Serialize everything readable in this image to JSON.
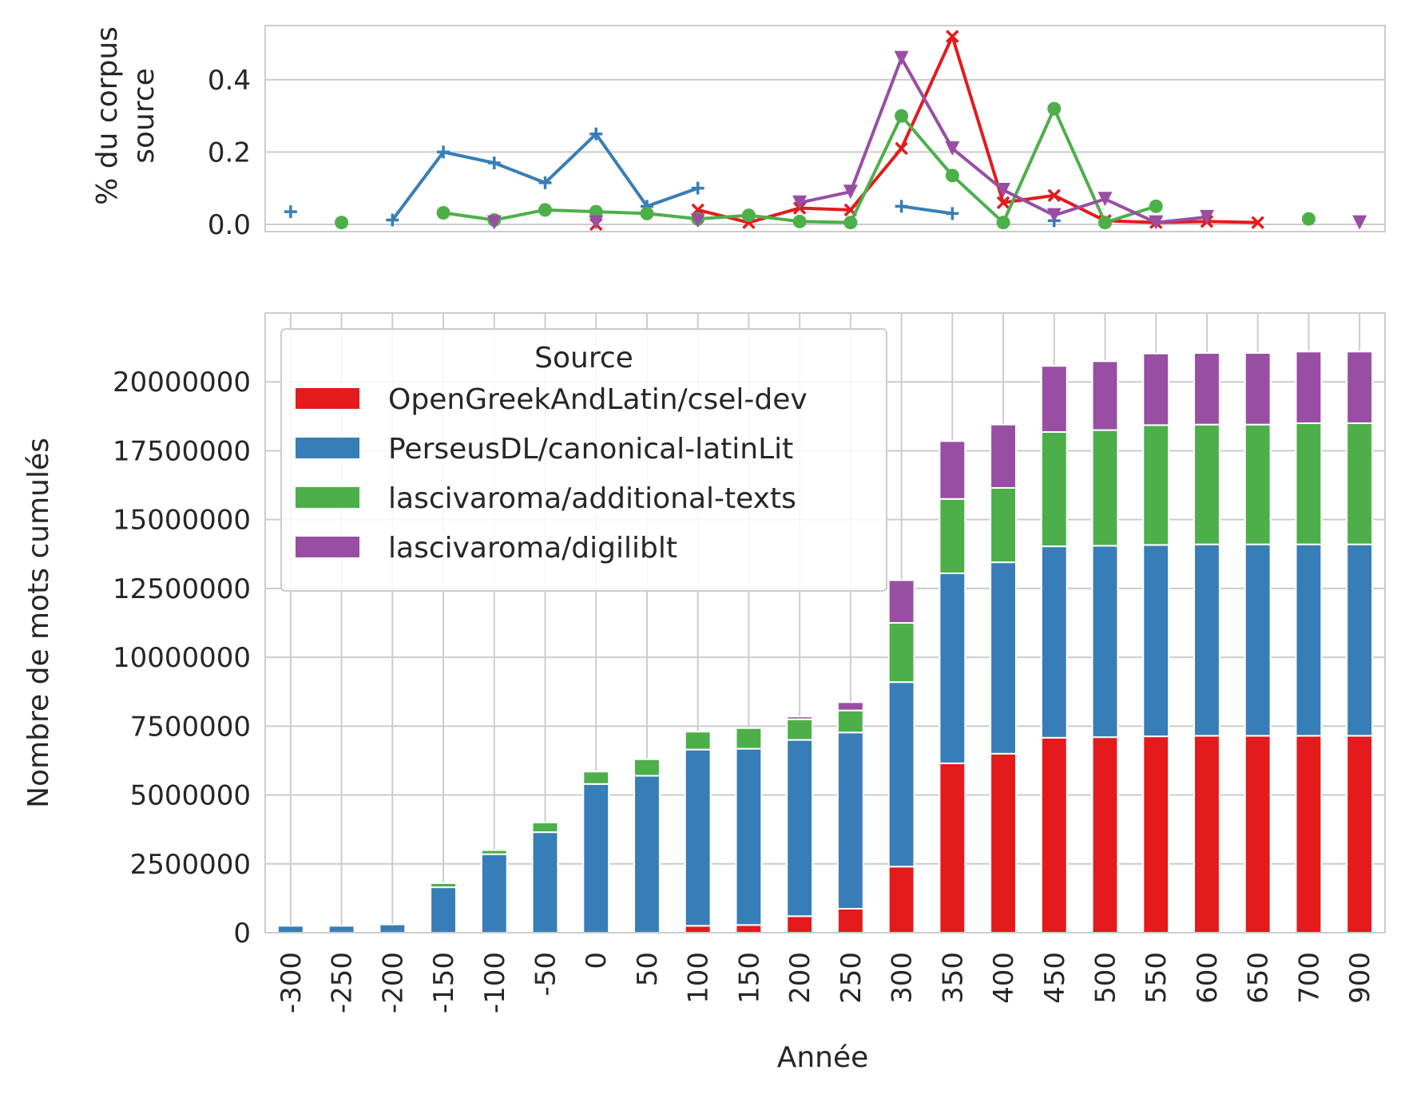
{
  "chart_data": [
    {
      "type": "line",
      "title": "",
      "xlabel": "",
      "ylabel": "% du corpus\nsource",
      "ylabel_lines": [
        "% du corpus",
        "source"
      ],
      "ylim": [
        -0.02,
        0.55
      ],
      "yticks": [
        0.0,
        0.2,
        0.4
      ],
      "ytick_labels": [
        "0.0",
        "0.2",
        "0.4"
      ],
      "grid": true,
      "x": [
        "-300",
        "-250",
        "-200",
        "-150",
        "-100",
        "-50",
        "0",
        "50",
        "100",
        "150",
        "200",
        "250",
        "300",
        "350",
        "400",
        "450",
        "500",
        "550",
        "600",
        "650",
        "700",
        "900"
      ],
      "series": [
        {
          "name": "OpenGreekAndLatin/csel-dev",
          "color": "#e41a1c",
          "marker": "x",
          "values": [
            null,
            null,
            null,
            null,
            null,
            null,
            0.0,
            null,
            0.04,
            0.005,
            0.045,
            0.04,
            0.21,
            0.52,
            0.06,
            0.08,
            0.01,
            0.005,
            0.008,
            0.005,
            null,
            null
          ]
        },
        {
          "name": "PerseusDL/canonical-latinLit",
          "color": "#377eb8",
          "marker": "+",
          "values": [
            0.035,
            null,
            0.012,
            0.2,
            0.17,
            0.115,
            0.25,
            0.05,
            0.1,
            null,
            null,
            null,
            0.05,
            0.03,
            null,
            0.01,
            null,
            null,
            null,
            null,
            null,
            null
          ]
        },
        {
          "name": "lascivaroma/additional-texts",
          "color": "#4daf4a",
          "marker": "o",
          "values": [
            null,
            0.005,
            null,
            0.032,
            0.012,
            0.04,
            0.035,
            0.03,
            0.015,
            0.025,
            0.008,
            0.005,
            0.3,
            0.135,
            0.005,
            0.32,
            0.005,
            0.05,
            null,
            null,
            0.015,
            null
          ]
        },
        {
          "name": "lascivaroma/digiliblt",
          "color": "#984ea3",
          "marker": "v",
          "values": [
            null,
            null,
            null,
            null,
            0.005,
            null,
            0.005,
            null,
            0.01,
            null,
            0.06,
            0.09,
            0.46,
            0.21,
            0.095,
            0.025,
            0.07,
            0.005,
            0.02,
            null,
            null,
            0.005
          ]
        }
      ]
    },
    {
      "type": "bar",
      "stacked": true,
      "title": "",
      "xlabel": "Année",
      "ylabel": "Nombre de mots cumulés",
      "ylim": [
        0,
        22500000
      ],
      "yticks": [
        0,
        2500000,
        5000000,
        7500000,
        10000000,
        12500000,
        15000000,
        17500000,
        20000000
      ],
      "ytick_labels": [
        "0",
        "2500000",
        "5000000",
        "7500000",
        "10000000",
        "12500000",
        "15000000",
        "17500000",
        "20000000"
      ],
      "grid": true,
      "categories": [
        "-300",
        "-250",
        "-200",
        "-150",
        "-100",
        "-50",
        "0",
        "50",
        "100",
        "150",
        "200",
        "250",
        "300",
        "350",
        "400",
        "450",
        "500",
        "550",
        "600",
        "650",
        "700",
        "900"
      ],
      "legend": {
        "title": "Source",
        "placement": "upper-left"
      },
      "series": [
        {
          "name": "OpenGreekAndLatin/csel-dev",
          "color": "#e41a1c",
          "values": [
            0,
            0,
            0,
            0,
            0,
            0,
            0,
            0,
            250000,
            280000,
            600000,
            870000,
            2400000,
            6150000,
            6500000,
            7080000,
            7100000,
            7130000,
            7150000,
            7150000,
            7150000,
            7150000
          ]
        },
        {
          "name": "PerseusDL/canonical-latinLit",
          "color": "#377eb8",
          "values": [
            250000,
            250000,
            300000,
            1650000,
            2850000,
            3650000,
            5400000,
            5700000,
            6400000,
            6400000,
            6400000,
            6400000,
            6700000,
            6900000,
            6950000,
            6950000,
            6950000,
            6950000,
            6950000,
            6950000,
            6950000,
            6950000
          ]
        },
        {
          "name": "lascivaroma/additional-texts",
          "color": "#4daf4a",
          "values": [
            0,
            0,
            0,
            150000,
            150000,
            350000,
            450000,
            600000,
            650000,
            750000,
            750000,
            800000,
            2150000,
            2700000,
            2700000,
            4150000,
            4200000,
            4350000,
            4350000,
            4350000,
            4400000,
            4400000
          ]
        },
        {
          "name": "lascivaroma/digiliblt",
          "color": "#984ea3",
          "values": [
            0,
            0,
            0,
            0,
            0,
            0,
            0,
            0,
            0,
            0,
            100000,
            300000,
            1550000,
            2100000,
            2300000,
            2400000,
            2500000,
            2600000,
            2600000,
            2600000,
            2600000,
            2600000
          ]
        }
      ]
    }
  ]
}
